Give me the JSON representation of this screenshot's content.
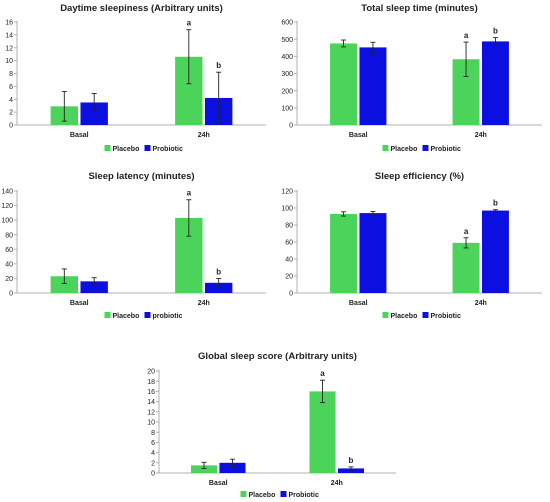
{
  "colors": {
    "placebo": "#4cd45a",
    "probiotic": "#0b10e0",
    "axis": "#b0b0b0",
    "text": "#222222"
  },
  "chart_data": [
    {
      "id": "daytime",
      "type": "bar",
      "title": "Daytime sleepiness (Arbitrary units)",
      "categories": [
        "Basal",
        "24h"
      ],
      "series": [
        {
          "name": "Placebo",
          "values": [
            2.9,
            10.6
          ],
          "errors": [
            2.3,
            4.2
          ]
        },
        {
          "name": "Probiotic",
          "values": [
            3.5,
            4.2
          ],
          "errors": [
            1.4,
            4.0
          ]
        }
      ],
      "annotations": [
        {
          "category": 1,
          "series": 0,
          "text": "a"
        },
        {
          "category": 1,
          "series": 1,
          "text": "b"
        }
      ],
      "ylim": [
        0,
        16
      ],
      "yticks": [
        0,
        2,
        4,
        6,
        8,
        10,
        12,
        14,
        16
      ],
      "legend": "bottom"
    },
    {
      "id": "total",
      "type": "bar",
      "title": "Total sleep time (minutes)",
      "categories": [
        "Basal",
        "24h"
      ],
      "series": [
        {
          "name": "Placebo",
          "values": [
            475,
            383
          ],
          "errors": [
            20,
            100
          ]
        },
        {
          "name": "Probiotic",
          "values": [
            452,
            487
          ],
          "errors": [
            30,
            22
          ]
        }
      ],
      "annotations": [
        {
          "category": 1,
          "series": 0,
          "text": "a"
        },
        {
          "category": 1,
          "series": 1,
          "text": "b"
        }
      ],
      "ylim": [
        0,
        600
      ],
      "yticks": [
        0,
        100,
        200,
        300,
        400,
        500,
        600
      ],
      "legend": "bottom"
    },
    {
      "id": "latency",
      "type": "bar",
      "title": "Sleep latency (minutes)",
      "categories": [
        "Basal",
        "24h"
      ],
      "series": [
        {
          "name": "Placebo",
          "values": [
            23,
            103
          ],
          "errors": [
            10,
            25
          ]
        },
        {
          "name": "probiotic",
          "values": [
            16,
            14
          ],
          "errors": [
            5,
            6
          ]
        }
      ],
      "annotations": [
        {
          "category": 1,
          "series": 0,
          "text": "a"
        },
        {
          "category": 1,
          "series": 1,
          "text": "b"
        }
      ],
      "ylim": [
        0,
        140
      ],
      "yticks": [
        0,
        20,
        40,
        60,
        80,
        100,
        120,
        140
      ],
      "legend": "bottom"
    },
    {
      "id": "efficiency",
      "type": "bar",
      "title": "Sleep efficiency (%)",
      "categories": [
        "Basal",
        "24h"
      ],
      "series": [
        {
          "name": "Placebo",
          "values": [
            93,
            59
          ],
          "errors": [
            2.5,
            6
          ]
        },
        {
          "name": "Probiotic",
          "values": [
            94,
            97
          ],
          "errors": [
            2,
            1
          ]
        }
      ],
      "annotations": [
        {
          "category": 1,
          "series": 0,
          "text": "a"
        },
        {
          "category": 1,
          "series": 1,
          "text": "b"
        }
      ],
      "ylim": [
        0,
        120
      ],
      "yticks": [
        0,
        20,
        40,
        60,
        80,
        100,
        120
      ],
      "legend": "bottom"
    },
    {
      "id": "global",
      "type": "bar",
      "title": "Global sleep score (Arbitrary units)",
      "categories": [
        "Basal",
        "24h"
      ],
      "series": [
        {
          "name": "Placebo",
          "values": [
            1.5,
            16.0
          ],
          "errors": [
            0.6,
            2.2
          ]
        },
        {
          "name": "Probiotic",
          "values": [
            2.0,
            0.9
          ],
          "errors": [
            0.7,
            0.3
          ]
        }
      ],
      "annotations": [
        {
          "category": 1,
          "series": 0,
          "text": "a"
        },
        {
          "category": 1,
          "series": 1,
          "text": "b"
        }
      ],
      "ylim": [
        0,
        20
      ],
      "yticks": [
        0,
        2,
        4,
        6,
        8,
        10,
        12,
        14,
        16,
        18,
        20
      ],
      "legend": "bottom"
    }
  ]
}
